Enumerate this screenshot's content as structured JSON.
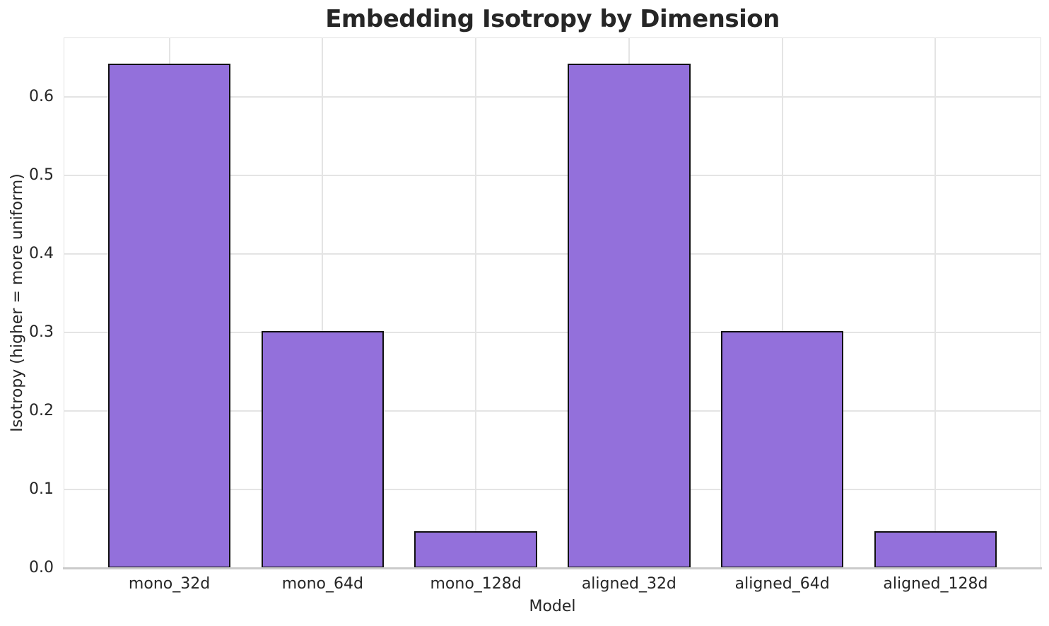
{
  "chart_data": {
    "type": "bar",
    "title": "Embedding Isotropy by Dimension",
    "xlabel": "Model",
    "ylabel": "Isotropy (higher = more uniform)",
    "categories": [
      "mono_32d",
      "mono_64d",
      "mono_128d",
      "aligned_32d",
      "aligned_64d",
      "aligned_128d"
    ],
    "values": [
      0.643,
      0.302,
      0.047,
      0.643,
      0.302,
      0.047
    ],
    "ylim": [
      0,
      0.676
    ],
    "yticks": [
      0.0,
      0.1,
      0.2,
      0.3,
      0.4,
      0.5,
      0.6
    ],
    "ytick_labels": [
      "0.0",
      "0.1",
      "0.2",
      "0.3",
      "0.4",
      "0.5",
      "0.6"
    ],
    "grid": "on",
    "legend": "none",
    "colors": {
      "bar_fill": "#9370DB",
      "bar_edge": "#111111",
      "grid": "#e4e4e4",
      "spine": "#e0e0e0",
      "bottom_spine": "#cbcbcb",
      "text": "#262626",
      "background": "#ffffff"
    }
  }
}
